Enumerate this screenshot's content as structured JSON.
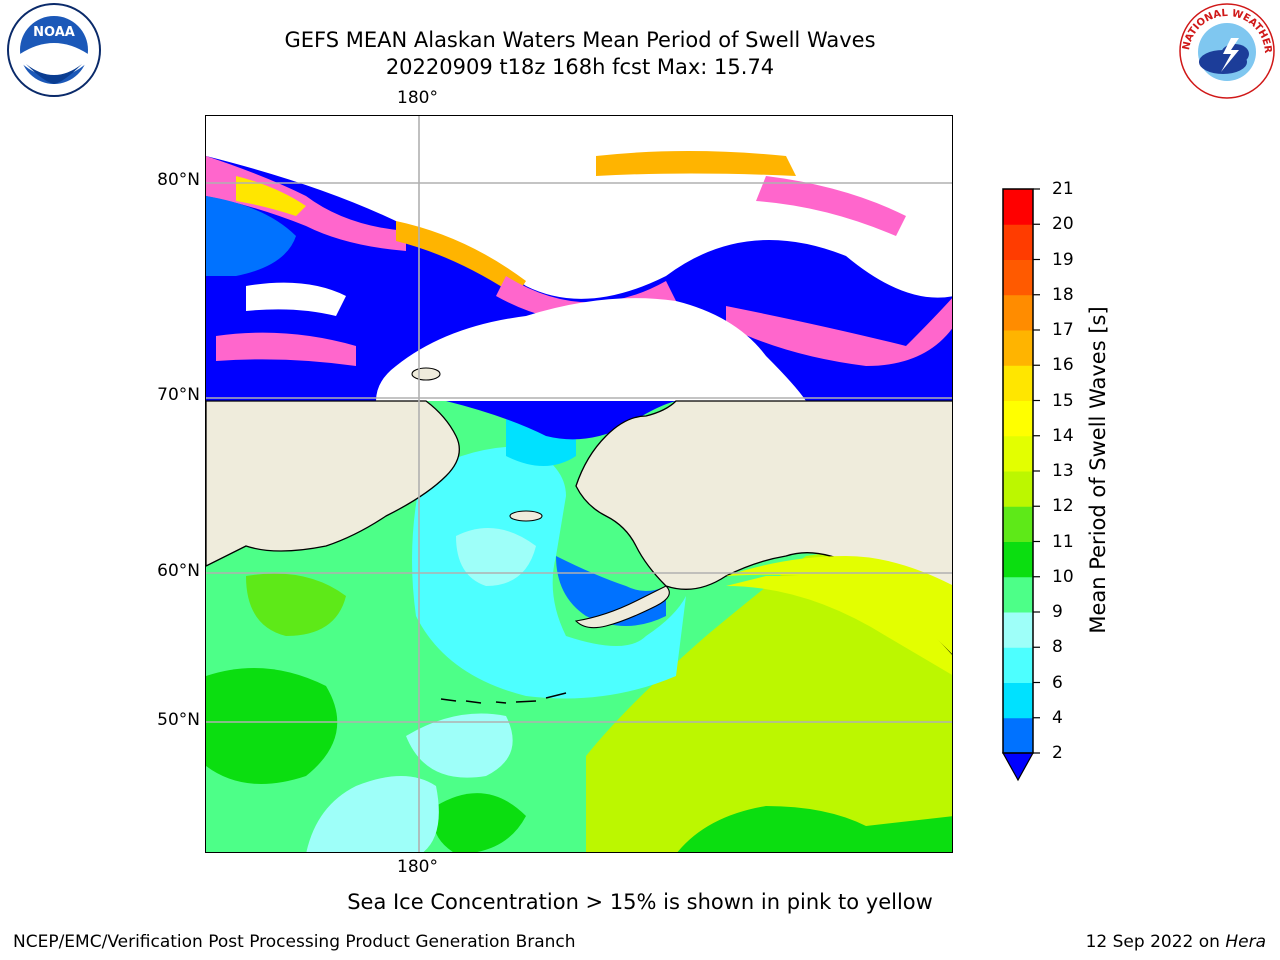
{
  "title": {
    "line1": "GEFS MEAN Alaskan Waters Mean Period of Swell Waves",
    "line2": "20220909 t18z 168h fcst   Max: 15.74"
  },
  "map": {
    "lon_label_top": "180°",
    "lon_label_bottom": "180°",
    "lat_labels": [
      "80°N",
      "70°N",
      "60°N",
      "50°N"
    ],
    "land_color": "#efecdc",
    "ice_free_water_color": "#ffffff"
  },
  "colorbar": {
    "title": "Mean Period of Swell Waves [s]",
    "ticks": [
      "2",
      "4",
      "6",
      "8",
      "9",
      "10",
      "11",
      "12",
      "13",
      "14",
      "15",
      "16",
      "17",
      "18",
      "19",
      "20",
      "21"
    ],
    "colors": [
      "#0072ff",
      "#00e1ff",
      "#4dffff",
      "#9efff9",
      "#4dff88",
      "#0bde10",
      "#5ee918",
      "#bcf700",
      "#e3ff00",
      "#ffff00",
      "#ffe600",
      "#ffb400",
      "#ff8c00",
      "#ff5a00",
      "#ff3c00",
      "#ff0000"
    ],
    "extend_color": "#0000ff"
  },
  "note": "Sea Ice Concentration > 15% is shown in pink to yellow",
  "footer": {
    "left": "NCEP/EMC/Verification Post Processing Product Generation Branch",
    "date": "12 Sep 2022 on ",
    "host": "Hera"
  },
  "logos": {
    "noaa_text": "NOAA",
    "nws_text": "NATIONAL WEATHER SERVICE"
  }
}
